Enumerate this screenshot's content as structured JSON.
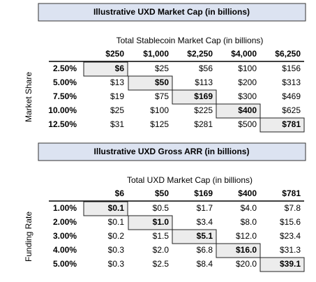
{
  "tables": [
    {
      "title": "Illustrative UXD Market Cap (in billions)",
      "column_label": "Total Stablecoin Market Cap (in billions)",
      "row_label": "Market Share",
      "columns": [
        "$250",
        "$1,000",
        "$2,250",
        "$4,000",
        "$6,250"
      ],
      "rows": [
        {
          "header": "2.50%",
          "cells": [
            "$6",
            "$25",
            "$56",
            "$100",
            "$156"
          ]
        },
        {
          "header": "5.00%",
          "cells": [
            "$13",
            "$50",
            "$113",
            "$200",
            "$313"
          ]
        },
        {
          "header": "7.50%",
          "cells": [
            "$19",
            "$75",
            "$169",
            "$300",
            "$469"
          ]
        },
        {
          "header": "10.00%",
          "cells": [
            "$25",
            "$100",
            "$225",
            "$400",
            "$625"
          ]
        },
        {
          "header": "12.50%",
          "cells": [
            "$31",
            "$125",
            "$281",
            "$500",
            "$781"
          ]
        }
      ]
    },
    {
      "title": "Illustrative UXD Gross ARR (in billions)",
      "column_label": "Total UXD Market Cap (in billions)",
      "row_label": "Funding Rate",
      "columns": [
        "$6",
        "$50",
        "$169",
        "$400",
        "$781"
      ],
      "rows": [
        {
          "header": "1.00%",
          "cells": [
            "$0.1",
            "$0.5",
            "$1.7",
            "$4.0",
            "$7.8"
          ]
        },
        {
          "header": "2.00%",
          "cells": [
            "$0.1",
            "$1.0",
            "$3.4",
            "$8.0",
            "$15.6"
          ]
        },
        {
          "header": "3.00%",
          "cells": [
            "$0.2",
            "$1.5",
            "$5.1",
            "$12.0",
            "$23.4"
          ]
        },
        {
          "header": "4.00%",
          "cells": [
            "$0.3",
            "$2.0",
            "$6.8",
            "$16.0",
            "$31.3"
          ]
        },
        {
          "header": "5.00%",
          "cells": [
            "$0.3",
            "$2.5",
            "$8.4",
            "$20.0",
            "$39.1"
          ]
        }
      ]
    }
  ]
}
